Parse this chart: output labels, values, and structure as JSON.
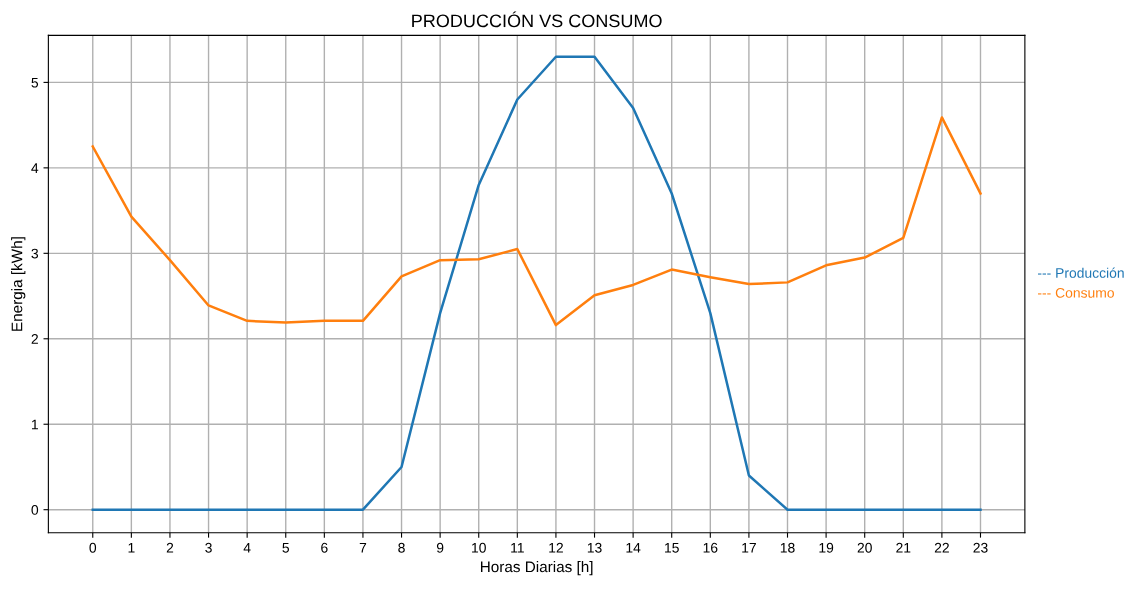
{
  "chart_data": {
    "type": "line",
    "title": "PRODUCCIÓN VS CONSUMO",
    "xlabel": "Horas Diarias [h]",
    "ylabel": "Energia [kWh]",
    "x": [
      0,
      1,
      2,
      3,
      4,
      5,
      6,
      7,
      8,
      9,
      10,
      11,
      12,
      13,
      14,
      15,
      16,
      17,
      18,
      19,
      20,
      21,
      22,
      23
    ],
    "series": [
      {
        "name": "--- Producción",
        "color": "#1f77b4",
        "values": [
          0,
          0,
          0,
          0,
          0,
          0,
          0,
          0,
          0.5,
          2.3,
          3.8,
          4.8,
          5.3,
          5.3,
          4.7,
          3.7,
          2.3,
          0.4,
          0,
          0,
          0,
          0,
          0,
          0
        ]
      },
      {
        "name": "--- Consumo",
        "color": "#ff7f0e",
        "values": [
          4.25,
          3.43,
          2.92,
          2.39,
          2.21,
          2.19,
          2.21,
          2.21,
          2.73,
          2.92,
          2.93,
          3.05,
          2.16,
          2.51,
          2.63,
          2.81,
          2.72,
          2.64,
          2.66,
          2.86,
          2.95,
          3.18,
          4.59,
          3.7
        ]
      }
    ],
    "xlim": [
      -1.15,
      24.15
    ],
    "xticks": [
      0,
      1,
      2,
      3,
      4,
      5,
      6,
      7,
      8,
      9,
      10,
      11,
      12,
      13,
      14,
      15,
      16,
      17,
      18,
      19,
      20,
      21,
      22,
      23
    ],
    "ylim": [
      -0.27,
      5.55
    ],
    "yticks": [
      0,
      1,
      2,
      3,
      4,
      5
    ],
    "grid": true,
    "legend": "right",
    "marker": "none",
    "line_style": "solid"
  }
}
